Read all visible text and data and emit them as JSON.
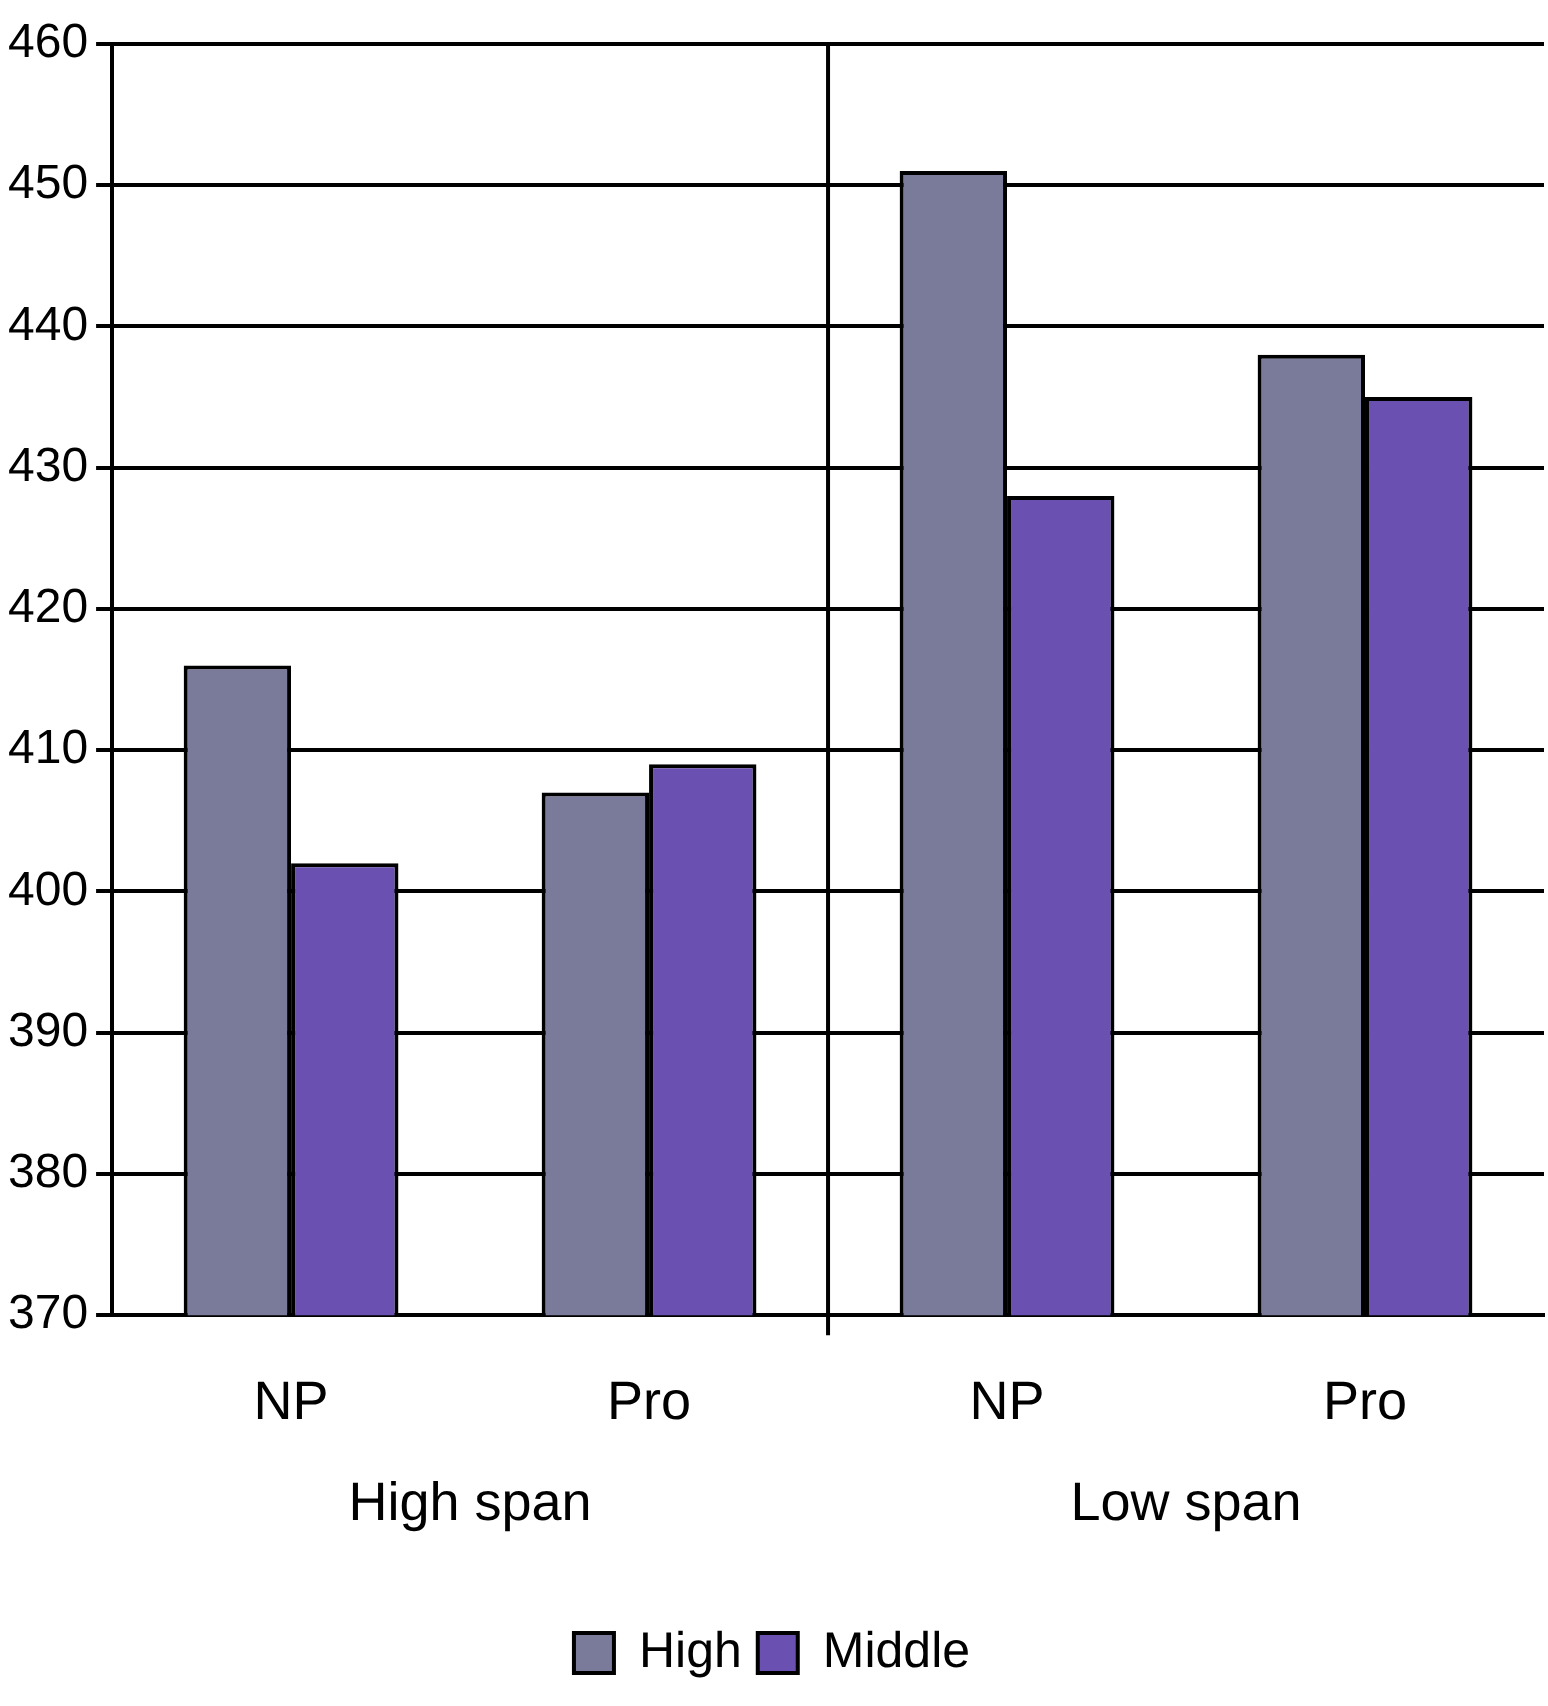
{
  "chart_data": {
    "type": "bar",
    "categories": [
      "NP",
      "Pro",
      "NP",
      "Pro"
    ],
    "series": [
      {
        "name": "High",
        "color": "#7a7a9a",
        "values": [
          416,
          407,
          451,
          438
        ]
      },
      {
        "name": "Middle",
        "color": "#6a50b0",
        "values": [
          402,
          409,
          428,
          435
        ]
      }
    ],
    "ylim": [
      370,
      460
    ],
    "yticks": [
      370,
      380,
      390,
      400,
      410,
      420,
      430,
      440,
      450,
      460
    ],
    "grid": "y",
    "legend": "bottom",
    "annotations": [
      "High span",
      "Low span"
    ]
  }
}
